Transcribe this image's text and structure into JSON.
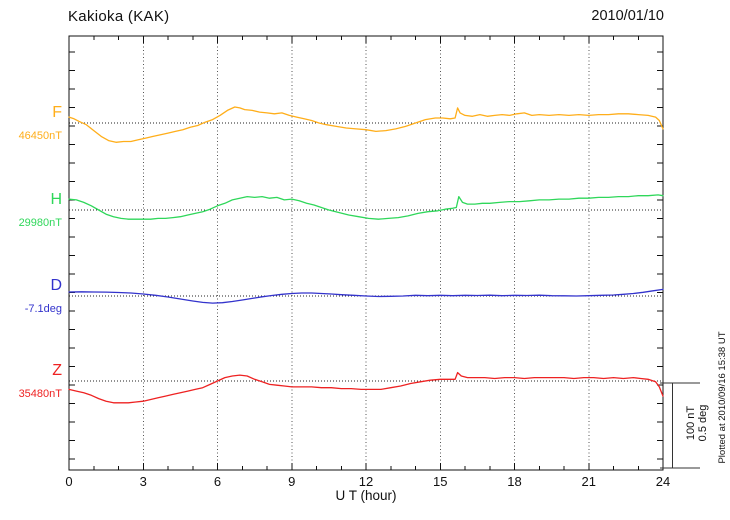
{
  "header": {
    "title": "Kakioka (KAK)",
    "date": "2010/01/10"
  },
  "chart_data": {
    "type": "line",
    "title": "Kakioka (KAK)",
    "date": "2010/01/10",
    "xlabel": "U T (hour)",
    "x_ticks": [
      0,
      3,
      6,
      9,
      12,
      15,
      18,
      21,
      24
    ],
    "x_range": [
      0,
      24
    ],
    "grid": "dotted vertical lines every 3 hours; dotted horizontal baseline per trace",
    "legend_position": "left margin, one label per trace",
    "scale_bar": {
      "labels": [
        "100 nT",
        "0.5 deg"
      ],
      "nT_per_bar": 100,
      "deg_per_bar": 0.5
    },
    "plotted_at": "Plotted at 2010/09/16 15:38 UT",
    "points_format": "[hour UT, offset from baseline_value in unit]",
    "series": [
      {
        "name": "F",
        "baseline_label": "46450nT",
        "baseline_value": 46450,
        "unit": "nT",
        "color": "#FFAE1A",
        "points": [
          [
            0,
            7
          ],
          [
            0.2,
            5
          ],
          [
            0.4,
            2
          ],
          [
            0.7,
            -2
          ],
          [
            1.0,
            -9
          ],
          [
            1.3,
            -16
          ],
          [
            1.6,
            -21
          ],
          [
            1.9,
            -23
          ],
          [
            2.2,
            -22
          ],
          [
            2.5,
            -22
          ],
          [
            2.8,
            -20
          ],
          [
            3.1,
            -18
          ],
          [
            3.4,
            -16
          ],
          [
            3.7,
            -14
          ],
          [
            4.0,
            -12
          ],
          [
            4.3,
            -10
          ],
          [
            4.6,
            -8
          ],
          [
            4.9,
            -5
          ],
          [
            5.2,
            -3
          ],
          [
            5.5,
            1
          ],
          [
            5.8,
            4
          ],
          [
            6.1,
            9
          ],
          [
            6.4,
            15
          ],
          [
            6.7,
            19
          ],
          [
            6.9,
            18
          ],
          [
            7.1,
            16
          ],
          [
            7.4,
            15
          ],
          [
            7.7,
            13
          ],
          [
            8.0,
            12
          ],
          [
            8.3,
            11
          ],
          [
            8.6,
            12
          ],
          [
            8.9,
            9
          ],
          [
            9.2,
            7
          ],
          [
            9.5,
            5
          ],
          [
            9.8,
            3
          ],
          [
            10.1,
            0
          ],
          [
            10.4,
            -2
          ],
          [
            10.8,
            -4
          ],
          [
            11.2,
            -6
          ],
          [
            11.6,
            -7
          ],
          [
            12.0,
            -8
          ],
          [
            12.4,
            -10
          ],
          [
            12.8,
            -9
          ],
          [
            13.2,
            -7
          ],
          [
            13.6,
            -4
          ],
          [
            14.0,
            0
          ],
          [
            14.4,
            4
          ],
          [
            14.8,
            6
          ],
          [
            15.1,
            6
          ],
          [
            15.4,
            5
          ],
          [
            15.6,
            6
          ],
          [
            15.7,
            18
          ],
          [
            15.8,
            12
          ],
          [
            16.0,
            9
          ],
          [
            16.3,
            8
          ],
          [
            16.6,
            10
          ],
          [
            16.9,
            8
          ],
          [
            17.2,
            9
          ],
          [
            17.5,
            10
          ],
          [
            17.8,
            9
          ],
          [
            18.1,
            11
          ],
          [
            18.4,
            12
          ],
          [
            18.7,
            9
          ],
          [
            19.0,
            10
          ],
          [
            19.4,
            9
          ],
          [
            19.8,
            10
          ],
          [
            20.2,
            9
          ],
          [
            20.6,
            10
          ],
          [
            21.0,
            9
          ],
          [
            21.4,
            10
          ],
          [
            21.8,
            10
          ],
          [
            22.2,
            11
          ],
          [
            22.6,
            11
          ],
          [
            23.0,
            10
          ],
          [
            23.4,
            9
          ],
          [
            23.7,
            7
          ],
          [
            23.85,
            3
          ],
          [
            24,
            -7
          ]
        ]
      },
      {
        "name": "H",
        "baseline_label": "29980nT",
        "baseline_value": 29980,
        "unit": "nT",
        "color": "#2FD75A",
        "points": [
          [
            0,
            13
          ],
          [
            0.3,
            12
          ],
          [
            0.6,
            9
          ],
          [
            0.9,
            5
          ],
          [
            1.2,
            0
          ],
          [
            1.5,
            -5
          ],
          [
            1.8,
            -8
          ],
          [
            2.1,
            -10
          ],
          [
            2.4,
            -11
          ],
          [
            2.7,
            -11
          ],
          [
            3.0,
            -11
          ],
          [
            3.3,
            -11
          ],
          [
            3.6,
            -10
          ],
          [
            3.9,
            -10
          ],
          [
            4.2,
            -9
          ],
          [
            4.5,
            -8
          ],
          [
            4.8,
            -6
          ],
          [
            5.1,
            -4
          ],
          [
            5.4,
            -2
          ],
          [
            5.7,
            1
          ],
          [
            6.0,
            5
          ],
          [
            6.3,
            8
          ],
          [
            6.6,
            12
          ],
          [
            6.9,
            14
          ],
          [
            7.2,
            16
          ],
          [
            7.5,
            15
          ],
          [
            7.8,
            16
          ],
          [
            8.1,
            14
          ],
          [
            8.4,
            15
          ],
          [
            8.7,
            12
          ],
          [
            9.0,
            13
          ],
          [
            9.3,
            11
          ],
          [
            9.6,
            8
          ],
          [
            9.9,
            6
          ],
          [
            10.2,
            3
          ],
          [
            10.5,
            0
          ],
          [
            10.9,
            -3
          ],
          [
            11.3,
            -6
          ],
          [
            11.7,
            -8
          ],
          [
            12.1,
            -10
          ],
          [
            12.5,
            -11
          ],
          [
            12.9,
            -10
          ],
          [
            13.3,
            -9
          ],
          [
            13.7,
            -7
          ],
          [
            14.1,
            -4
          ],
          [
            14.5,
            -2
          ],
          [
            14.9,
            -1
          ],
          [
            15.2,
            1
          ],
          [
            15.5,
            2
          ],
          [
            15.65,
            3
          ],
          [
            15.75,
            16
          ],
          [
            15.9,
            9
          ],
          [
            16.1,
            7
          ],
          [
            16.4,
            7
          ],
          [
            16.7,
            8
          ],
          [
            17.0,
            8
          ],
          [
            17.4,
            9
          ],
          [
            17.8,
            10
          ],
          [
            18.2,
            10
          ],
          [
            18.6,
            11
          ],
          [
            19.0,
            12
          ],
          [
            19.4,
            12
          ],
          [
            19.8,
            13
          ],
          [
            20.2,
            13
          ],
          [
            20.6,
            14
          ],
          [
            21.0,
            14
          ],
          [
            21.4,
            15
          ],
          [
            21.8,
            15
          ],
          [
            22.2,
            16
          ],
          [
            22.6,
            16
          ],
          [
            23.0,
            17
          ],
          [
            23.4,
            17
          ],
          [
            23.8,
            18
          ],
          [
            24,
            17
          ]
        ]
      },
      {
        "name": "D",
        "baseline_label": "-7.1deg",
        "baseline_value": -7.1,
        "unit": "deg",
        "color": "#3333CC",
        "points": [
          [
            0,
            0.024
          ],
          [
            0.5,
            0.025
          ],
          [
            1.0,
            0.024
          ],
          [
            1.5,
            0.023
          ],
          [
            2.0,
            0.021
          ],
          [
            2.5,
            0.018
          ],
          [
            3.0,
            0.012
          ],
          [
            3.5,
            0.004
          ],
          [
            4.0,
            -0.006
          ],
          [
            4.5,
            -0.018
          ],
          [
            5.0,
            -0.03
          ],
          [
            5.4,
            -0.038
          ],
          [
            5.8,
            -0.042
          ],
          [
            6.2,
            -0.04
          ],
          [
            6.6,
            -0.033
          ],
          [
            7.0,
            -0.024
          ],
          [
            7.4,
            -0.014
          ],
          [
            7.8,
            -0.005
          ],
          [
            8.2,
            0.003
          ],
          [
            8.6,
            0.01
          ],
          [
            9.0,
            0.015
          ],
          [
            9.4,
            0.018
          ],
          [
            9.8,
            0.018
          ],
          [
            10.2,
            0.015
          ],
          [
            10.6,
            0.012
          ],
          [
            11.0,
            0.008
          ],
          [
            11.5,
            0.004
          ],
          [
            12.0,
            0.0
          ],
          [
            12.5,
            -0.003
          ],
          [
            13.0,
            -0.002
          ],
          [
            13.5,
            0.0
          ],
          [
            14.0,
            0.004
          ],
          [
            14.5,
            0.002
          ],
          [
            15.0,
            0.004
          ],
          [
            15.5,
            0.002
          ],
          [
            16.0,
            0.004
          ],
          [
            16.5,
            0.003
          ],
          [
            17.0,
            0.005
          ],
          [
            17.5,
            0.002
          ],
          [
            18.0,
            0.004
          ],
          [
            18.5,
            0.003
          ],
          [
            19.0,
            0.005
          ],
          [
            19.5,
            0.002
          ],
          [
            20.0,
            0.001
          ],
          [
            20.5,
            0.0
          ],
          [
            21.0,
            0.002
          ],
          [
            21.5,
            0.004
          ],
          [
            22.0,
            0.006
          ],
          [
            22.4,
            0.01
          ],
          [
            22.8,
            0.015
          ],
          [
            23.2,
            0.022
          ],
          [
            23.6,
            0.031
          ],
          [
            24,
            0.039
          ]
        ]
      },
      {
        "name": "Z",
        "baseline_label": "35480nT",
        "baseline_value": 35480,
        "unit": "nT",
        "color": "#EE2222",
        "points": [
          [
            0,
            -10
          ],
          [
            0.3,
            -12
          ],
          [
            0.6,
            -14
          ],
          [
            0.9,
            -17
          ],
          [
            1.2,
            -21
          ],
          [
            1.5,
            -24
          ],
          [
            1.8,
            -26
          ],
          [
            2.1,
            -26
          ],
          [
            2.4,
            -26
          ],
          [
            2.7,
            -25
          ],
          [
            3.0,
            -24
          ],
          [
            3.3,
            -22
          ],
          [
            3.6,
            -20
          ],
          [
            3.9,
            -18
          ],
          [
            4.2,
            -16
          ],
          [
            4.5,
            -14
          ],
          [
            4.8,
            -12
          ],
          [
            5.1,
            -10
          ],
          [
            5.4,
            -8
          ],
          [
            5.7,
            -4
          ],
          [
            6.0,
            0
          ],
          [
            6.3,
            4
          ],
          [
            6.6,
            6
          ],
          [
            6.9,
            7
          ],
          [
            7.2,
            6
          ],
          [
            7.5,
            2
          ],
          [
            7.8,
            -1
          ],
          [
            8.1,
            -4
          ],
          [
            8.4,
            -5
          ],
          [
            8.7,
            -6
          ],
          [
            9.0,
            -7
          ],
          [
            9.4,
            -7
          ],
          [
            9.8,
            -7
          ],
          [
            10.2,
            -8
          ],
          [
            10.6,
            -8
          ],
          [
            11.0,
            -9
          ],
          [
            11.4,
            -9
          ],
          [
            11.8,
            -10
          ],
          [
            12.2,
            -10
          ],
          [
            12.6,
            -10
          ],
          [
            13.0,
            -8
          ],
          [
            13.4,
            -6
          ],
          [
            13.8,
            -3
          ],
          [
            14.2,
            -1
          ],
          [
            14.6,
            1
          ],
          [
            15.0,
            2
          ],
          [
            15.3,
            2
          ],
          [
            15.6,
            2
          ],
          [
            15.7,
            10
          ],
          [
            15.85,
            6
          ],
          [
            16.1,
            4
          ],
          [
            16.4,
            4
          ],
          [
            16.8,
            4
          ],
          [
            17.2,
            3
          ],
          [
            17.6,
            4
          ],
          [
            18.0,
            4
          ],
          [
            18.4,
            3
          ],
          [
            18.8,
            4
          ],
          [
            19.2,
            4
          ],
          [
            19.6,
            4
          ],
          [
            20.0,
            4
          ],
          [
            20.4,
            3
          ],
          [
            20.8,
            4
          ],
          [
            21.2,
            4
          ],
          [
            21.6,
            3
          ],
          [
            22.0,
            4
          ],
          [
            22.4,
            3
          ],
          [
            22.8,
            4
          ],
          [
            23.1,
            3
          ],
          [
            23.4,
            2
          ],
          [
            23.7,
            -1
          ],
          [
            23.85,
            -7
          ],
          [
            24,
            -18
          ]
        ]
      }
    ]
  }
}
